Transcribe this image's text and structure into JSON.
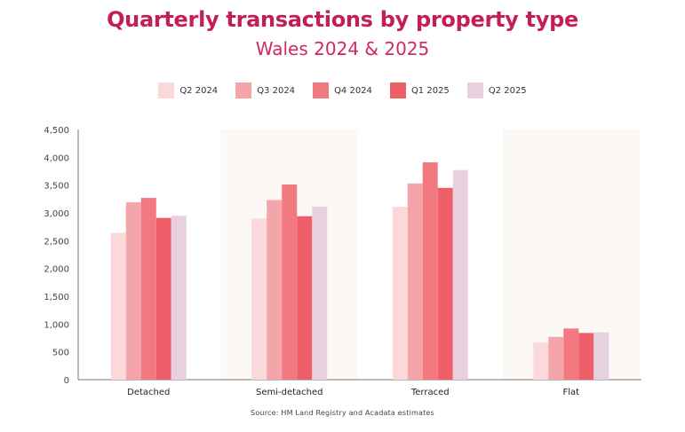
{
  "chart_data": {
    "type": "bar",
    "title": "Quarterly transactions by property type",
    "subtitle": "Wales 2024 & 2025",
    "categories": [
      "Detached",
      "Semi-detached",
      "Terraced",
      "Flat"
    ],
    "series": [
      {
        "name": "Q2 2024",
        "color": "#fbd9da",
        "values": [
          2640,
          2900,
          3110,
          670
        ]
      },
      {
        "name": "Q3 2024",
        "color": "#f4a5aa",
        "values": [
          3190,
          3230,
          3530,
          770
        ]
      },
      {
        "name": "Q4 2024",
        "color": "#f27980",
        "values": [
          3270,
          3510,
          3910,
          920
        ]
      },
      {
        "name": "Q1 2025",
        "color": "#ef5f6a",
        "values": [
          2910,
          2940,
          3450,
          840
        ]
      },
      {
        "name": "Q2 2025",
        "color": "#e7d1df",
        "values": [
          2950,
          3110,
          3770,
          850
        ]
      }
    ],
    "ylim": [
      0,
      4500
    ],
    "yticks": [
      "4,500",
      "4,000",
      "3,500",
      "3,000",
      "2,500",
      "2,000",
      "1,500",
      "1,000",
      "500",
      "0"
    ],
    "ytick_values": [
      4500,
      4000,
      3500,
      3000,
      2500,
      2000,
      1500,
      1000,
      500,
      0
    ],
    "grid": false,
    "legend_position": "top-center",
    "shaded_categories": [
      "Semi-detached",
      "Flat"
    ],
    "source": "Source: HM Land Registry and Acadata estimates"
  }
}
